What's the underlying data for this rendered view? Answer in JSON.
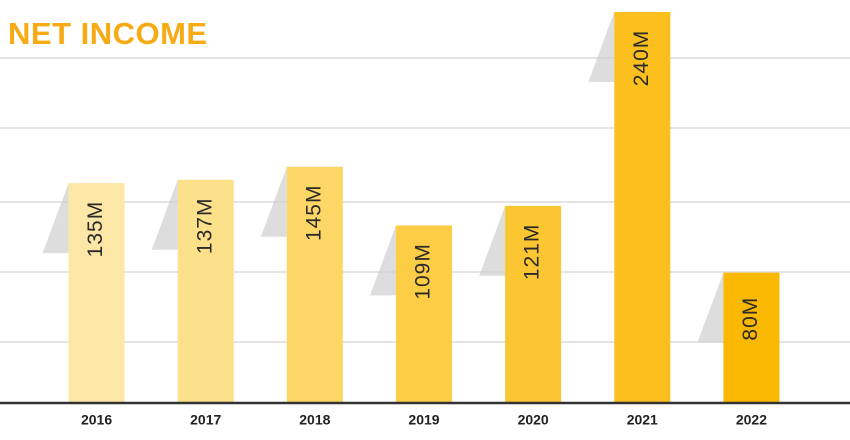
{
  "chart_data": {
    "type": "bar",
    "title": "NET INCOME",
    "categories": [
      "2016",
      "2017",
      "2018",
      "2019",
      "2020",
      "2021",
      "2022"
    ],
    "values": [
      135,
      137,
      145,
      109,
      121,
      240,
      80
    ],
    "value_labels": [
      "135M",
      "137M",
      "145M",
      "109M",
      "121M",
      "240M",
      "80M"
    ],
    "colors": [
      "#fde7a6",
      "#fde08a",
      "#fcd766",
      "#fccd45",
      "#fbc631",
      "#fbbf1e",
      "#fab800"
    ],
    "ylim": [
      0,
      240
    ]
  }
}
